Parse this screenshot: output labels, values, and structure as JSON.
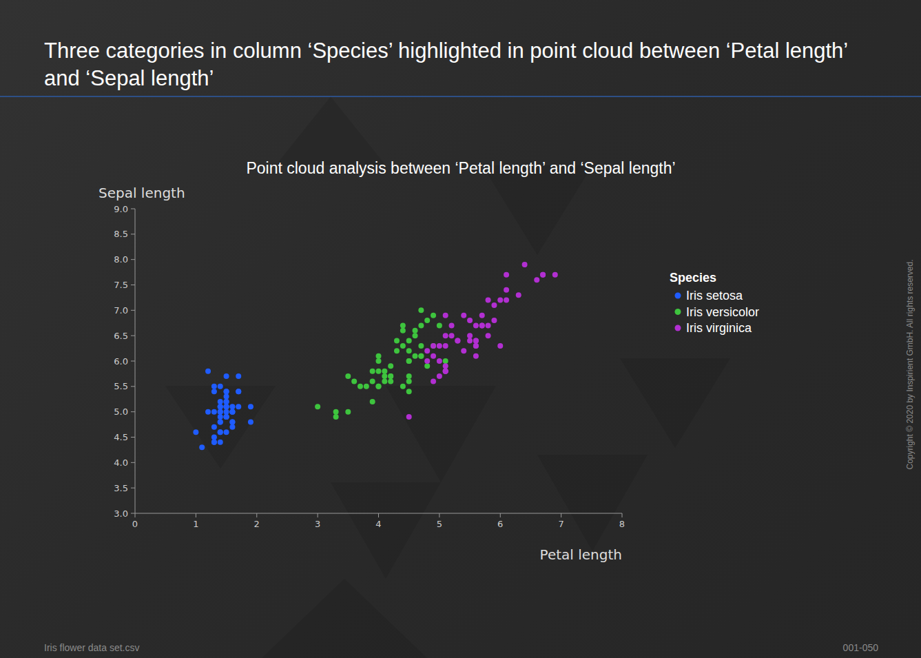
{
  "slide": {
    "title": "Three categories in column ‘Species’ highlighted in point cloud between ‘Petal length’ and ‘Sepal length’",
    "footer_left": "Iris flower data set.csv",
    "footer_right": "001-050",
    "copyright": "Copyright © 2020 by Inspirient GmbH. All rights reserved."
  },
  "chart_data": {
    "type": "scatter",
    "title": "Point cloud analysis between ‘Petal length’ and ‘Sepal length’",
    "x_label": "Petal length",
    "y_label": "Sepal length",
    "legend_title": "Species",
    "legend": "right",
    "grid": false,
    "marker": "circle",
    "xlim": [
      0,
      8
    ],
    "xticks": [
      0,
      1,
      2,
      3,
      4,
      5,
      6,
      7,
      8
    ],
    "ylim": [
      3,
      9
    ],
    "yticks": [
      {
        "value": 3,
        "label": "3.0"
      },
      3.5,
      {
        "value": 4,
        "label": "4.0"
      },
      4.5,
      {
        "value": 5,
        "label": "5.0"
      },
      5.5,
      {
        "value": 6,
        "label": "6.0"
      },
      6.5,
      {
        "value": 7,
        "label": "7.0"
      },
      7.5,
      {
        "value": 8,
        "label": "8.0"
      },
      8.5,
      {
        "value": 9,
        "label": "9.0"
      }
    ],
    "series": [
      {
        "name": "Iris setosa",
        "color": "#1f5cff",
        "x": [
          1.4,
          1.4,
          1.3,
          1.5,
          1.4,
          1.7,
          1.4,
          1.5,
          1.4,
          1.5,
          1.5,
          1.6,
          1.4,
          1.1,
          1.2,
          1.5,
          1.3,
          1.4,
          1.7,
          1.5,
          1.7,
          1.5,
          1.0,
          1.7,
          1.9,
          1.6,
          1.6,
          1.5,
          1.4,
          1.6,
          1.6,
          1.5,
          1.5,
          1.4,
          1.5,
          1.2,
          1.3,
          1.5,
          1.3,
          1.5,
          1.3,
          1.3,
          1.3,
          1.6,
          1.9,
          1.4,
          1.6,
          1.4,
          1.5,
          1.4
        ],
        "values": [
          5.1,
          4.9,
          4.7,
          4.6,
          5.0,
          5.4,
          4.6,
          5.0,
          4.4,
          4.9,
          5.4,
          4.8,
          4.8,
          4.3,
          5.8,
          5.7,
          5.4,
          5.1,
          5.7,
          5.1,
          5.4,
          5.1,
          4.6,
          5.1,
          4.8,
          5.0,
          5.0,
          5.2,
          5.2,
          4.7,
          4.8,
          5.4,
          5.2,
          5.5,
          4.9,
          5.0,
          5.5,
          4.9,
          4.4,
          5.1,
          5.0,
          4.5,
          4.4,
          5.0,
          5.1,
          4.8,
          5.1,
          4.6,
          5.3,
          5.0
        ]
      },
      {
        "name": "Iris versicolor",
        "color": "#3ec43e",
        "x": [
          4.7,
          4.5,
          4.9,
          4.0,
          4.6,
          4.5,
          4.7,
          3.3,
          4.6,
          3.9,
          3.5,
          4.2,
          4.0,
          4.7,
          3.6,
          4.4,
          4.5,
          4.1,
          4.5,
          3.9,
          4.8,
          4.0,
          4.9,
          4.7,
          4.3,
          4.4,
          4.8,
          5.0,
          4.5,
          3.5,
          3.8,
          3.7,
          3.9,
          5.1,
          4.5,
          4.5,
          4.7,
          4.4,
          4.1,
          4.0,
          4.4,
          4.6,
          4.0,
          3.3,
          4.2,
          4.2,
          4.2,
          4.3,
          3.0,
          4.1
        ],
        "values": [
          7.0,
          6.4,
          6.9,
          5.5,
          6.5,
          5.7,
          6.3,
          4.9,
          6.6,
          5.2,
          5.0,
          5.9,
          6.0,
          6.1,
          5.6,
          6.7,
          5.6,
          5.8,
          6.2,
          5.6,
          5.9,
          6.1,
          6.3,
          6.1,
          6.4,
          6.6,
          6.8,
          6.7,
          6.0,
          5.7,
          5.5,
          5.5,
          5.8,
          6.0,
          5.4,
          6.0,
          6.7,
          6.3,
          5.6,
          5.5,
          5.5,
          6.1,
          5.8,
          5.0,
          5.6,
          5.7,
          5.7,
          6.2,
          5.1,
          5.7
        ]
      },
      {
        "name": "Iris virginica",
        "color": "#b22fd2",
        "x": [
          6.0,
          5.1,
          5.9,
          5.6,
          5.8,
          6.6,
          4.5,
          6.3,
          5.8,
          6.1,
          5.1,
          5.3,
          5.5,
          5.0,
          5.1,
          5.3,
          5.5,
          6.7,
          6.9,
          5.0,
          5.7,
          4.9,
          6.7,
          4.9,
          5.7,
          6.0,
          4.8,
          4.9,
          5.6,
          5.8,
          6.1,
          6.4,
          5.6,
          5.1,
          5.6,
          6.1,
          5.6,
          5.5,
          4.8,
          5.4,
          5.6,
          5.1,
          5.1,
          5.9,
          5.7,
          5.2,
          5.0,
          5.2,
          5.4,
          5.1
        ],
        "values": [
          6.3,
          5.8,
          7.1,
          6.3,
          6.5,
          7.6,
          4.9,
          7.3,
          6.7,
          7.2,
          6.5,
          6.4,
          6.8,
          5.7,
          5.8,
          6.4,
          6.5,
          7.7,
          7.7,
          6.0,
          6.9,
          5.6,
          7.7,
          6.3,
          6.7,
          7.2,
          6.2,
          6.1,
          6.4,
          7.2,
          7.4,
          7.9,
          6.4,
          6.3,
          6.1,
          7.7,
          6.3,
          6.4,
          6.0,
          6.9,
          6.7,
          6.9,
          5.8,
          6.8,
          6.7,
          6.7,
          6.3,
          6.5,
          6.2,
          5.9
        ]
      }
    ]
  }
}
